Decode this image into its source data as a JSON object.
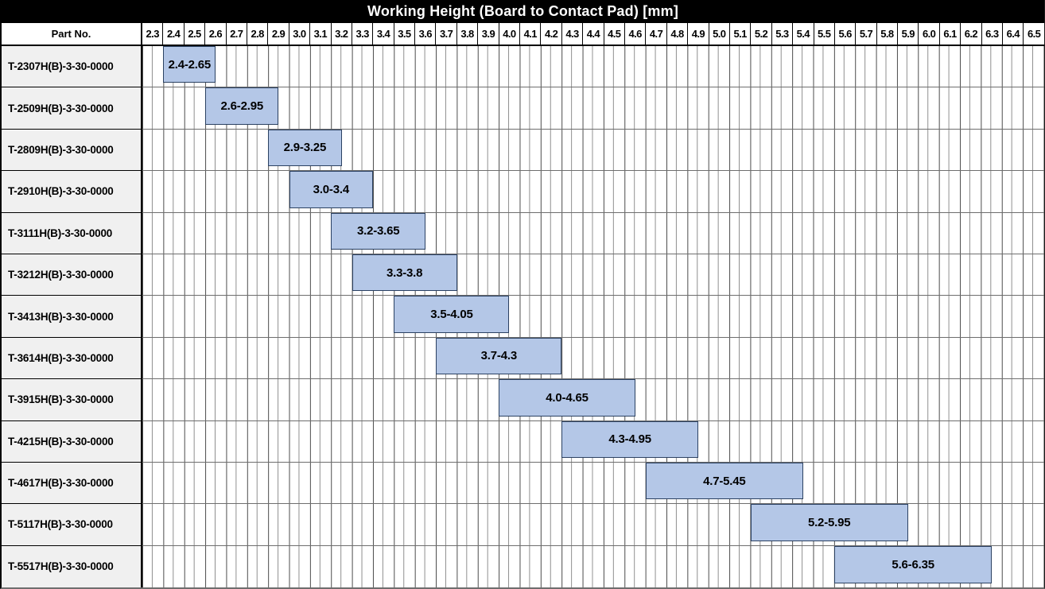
{
  "title": "Working Height (Board to Contact Pad) [mm]",
  "columns": {
    "part_no_header": "Part No."
  },
  "colors": {
    "title_bg": "#000000",
    "title_text": "#ffffff",
    "bar_fill": "#b4c7e7",
    "bar_border": "#2b4162",
    "part_cell_bg": "#f0f0f0",
    "grid_line_major": "#4b4b4b",
    "grid_line_minor": "#8f8f8f"
  },
  "chart_data": {
    "type": "bar",
    "subtype": "horizontal-range",
    "title": "Working Height (Board to Contact Pad) [mm]",
    "xlabel": "Working Height [mm]",
    "ylabel": "Part No.",
    "xlim": [
      2.3,
      6.6
    ],
    "xtick_step": 0.1,
    "grid": "on",
    "legend": "none",
    "xticks": [
      "2.3",
      "2.4",
      "2.5",
      "2.6",
      "2.7",
      "2.8",
      "2.9",
      "3.0",
      "3.1",
      "3.2",
      "3.3",
      "3.4",
      "3.5",
      "3.6",
      "3.7",
      "3.8",
      "3.9",
      "4.0",
      "4.1",
      "4.2",
      "4.3",
      "4.4",
      "4.5",
      "4.6",
      "4.7",
      "4.8",
      "4.9",
      "5.0",
      "5.1",
      "5.2",
      "5.3",
      "5.4",
      "5.5",
      "5.6",
      "5.7",
      "5.8",
      "5.9",
      "6.0",
      "6.1",
      "6.2",
      "6.3",
      "6.4",
      "6.5"
    ],
    "categories": [
      "T-2307H(B)-3-30-0000",
      "T-2509H(B)-3-30-0000",
      "T-2809H(B)-3-30-0000",
      "T-2910H(B)-3-30-0000",
      "T-3111H(B)-3-30-0000",
      "T-3212H(B)-3-30-0000",
      "T-3413H(B)-3-30-0000",
      "T-3614H(B)-3-30-0000",
      "T-3915H(B)-3-30-0000",
      "T-4215H(B)-3-30-0000",
      "T-4617H(B)-3-30-0000",
      "T-5117H(B)-3-30-0000",
      "T-5517H(B)-3-30-0000"
    ],
    "ranges": [
      [
        2.4,
        2.65
      ],
      [
        2.6,
        2.95
      ],
      [
        2.9,
        3.25
      ],
      [
        3.0,
        3.4
      ],
      [
        3.2,
        3.65
      ],
      [
        3.3,
        3.8
      ],
      [
        3.5,
        4.05
      ],
      [
        3.7,
        4.3
      ],
      [
        4.0,
        4.65
      ],
      [
        4.3,
        4.95
      ],
      [
        4.7,
        5.45
      ],
      [
        5.2,
        5.95
      ],
      [
        5.6,
        6.35
      ]
    ],
    "bar_labels": [
      "2.4-2.65",
      "2.6-2.95",
      "2.9-3.25",
      "3.0-3.4",
      "3.2-3.65",
      "3.3-3.8",
      "3.5-4.05",
      "3.7-4.3",
      "4.0-4.65",
      "4.3-4.95",
      "4.7-5.45",
      "5.2-5.95",
      "5.6-6.35"
    ]
  }
}
